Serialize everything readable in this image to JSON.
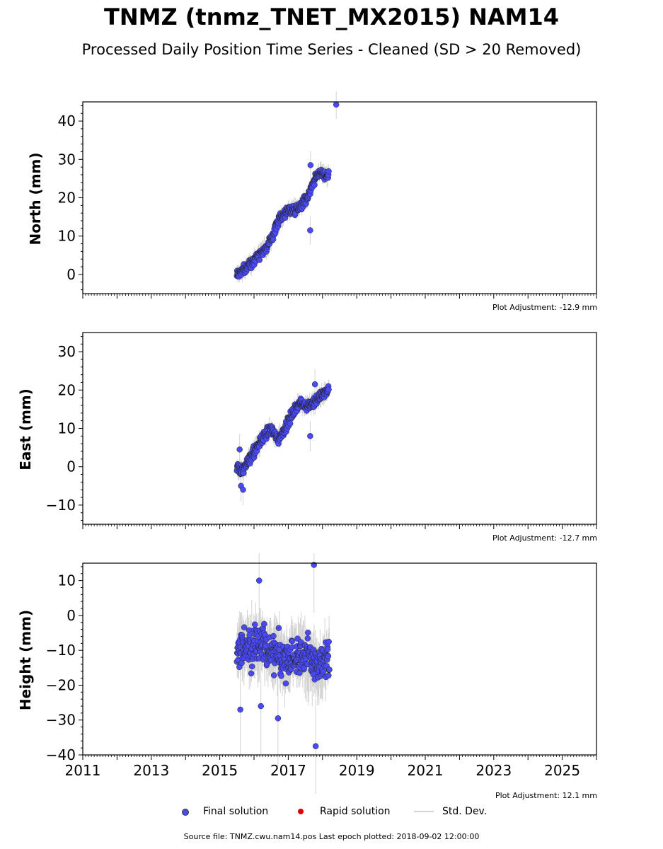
{
  "header": {
    "title": "TNMZ (tnmz_TNET_MX2015) NAM14",
    "subtitle": "Processed Daily Position Time Series - Cleaned (SD > 20 Removed)"
  },
  "legend": {
    "final": "Final solution",
    "rapid": "Rapid solution",
    "std": "Std. Dev."
  },
  "footer": "Source file: TNMZ.cwu.nam14.pos  Last epoch plotted: 2018-09-02 12:00:00",
  "colors": {
    "final": "#4a4af5",
    "rapid": "#e00000",
    "std": "#d3d3d3"
  },
  "chart_data": [
    {
      "type": "scatter",
      "ylabel": "North (mm)",
      "adjustment": "Plot Adjustment: -12.9 mm",
      "xlim": [
        2011,
        2026
      ],
      "ylim": [
        -5,
        45
      ],
      "yticks": [
        0,
        10,
        20,
        30,
        40
      ],
      "xticks": [],
      "grid": false,
      "series": [
        {
          "name": "Final solution",
          "trend": [
            [
              2015.5,
              0
            ],
            [
              2015.75,
              1.5
            ],
            [
              2015.95,
              3.5
            ],
            [
              2016.15,
              5.5
            ],
            [
              2016.35,
              6.8
            ],
            [
              2016.5,
              9
            ],
            [
              2016.7,
              14
            ],
            [
              2016.95,
              16.5
            ],
            [
              2017.3,
              17.5
            ],
            [
              2017.55,
              20
            ],
            [
              2017.75,
              24.5
            ],
            [
              2017.95,
              27
            ],
            [
              2018.1,
              25.5
            ],
            [
              2018.18,
              26
            ]
          ],
          "noise": 1.2,
          "sd": 1.5,
          "outliers": [
            [
              2017.64,
              11.5
            ],
            [
              2017.65,
              28.5
            ],
            [
              2018.4,
              44.3
            ]
          ]
        }
      ]
    },
    {
      "type": "scatter",
      "ylabel": "East (mm)",
      "adjustment": "Plot Adjustment: -12.7 mm",
      "xlim": [
        2011,
        2026
      ],
      "ylim": [
        -15,
        35
      ],
      "yticks": [
        -10,
        0,
        10,
        20,
        30
      ],
      "xticks": [],
      "grid": false,
      "series": [
        {
          "name": "Final solution",
          "trend": [
            [
              2015.5,
              -0.5
            ],
            [
              2015.7,
              -1
            ],
            [
              2015.8,
              1
            ],
            [
              2016.0,
              4
            ],
            [
              2016.3,
              8
            ],
            [
              2016.5,
              10
            ],
            [
              2016.7,
              7
            ],
            [
              2016.9,
              10
            ],
            [
              2017.1,
              13.5
            ],
            [
              2017.3,
              16.5
            ],
            [
              2017.55,
              16
            ],
            [
              2017.8,
              17
            ],
            [
              2018.0,
              19
            ],
            [
              2018.18,
              20
            ]
          ],
          "noise": 1.3,
          "sd": 1.6,
          "outliers": [
            [
              2015.58,
              4.5
            ],
            [
              2015.62,
              -5
            ],
            [
              2015.68,
              -6
            ],
            [
              2017.64,
              8
            ],
            [
              2017.78,
              21.5
            ]
          ]
        }
      ]
    },
    {
      "type": "scatter",
      "ylabel": "Height (mm)",
      "adjustment": "Plot Adjustment: 12.1 mm",
      "xlim": [
        2011,
        2026
      ],
      "ylim": [
        -40,
        15
      ],
      "yticks": [
        -40,
        -30,
        -20,
        -10,
        0,
        10
      ],
      "xticks": [
        2011,
        2013,
        2015,
        2017,
        2019,
        2021,
        2023,
        2025
      ],
      "grid": false,
      "series": [
        {
          "name": "Final solution",
          "trend": [
            [
              2015.5,
              -10
            ],
            [
              2015.8,
              -8
            ],
            [
              2016.0,
              -9
            ],
            [
              2016.3,
              -8
            ],
            [
              2016.6,
              -11
            ],
            [
              2016.9,
              -13
            ],
            [
              2017.2,
              -11
            ],
            [
              2017.5,
              -11
            ],
            [
              2017.8,
              -14
            ],
            [
              2018.0,
              -15
            ],
            [
              2018.2,
              -12
            ]
          ],
          "noise": 5.5,
          "sd": 5.5,
          "outliers": [
            [
              2015.6,
              -27
            ],
            [
              2016.15,
              10
            ],
            [
              2016.2,
              -26
            ],
            [
              2016.7,
              -29.5
            ],
            [
              2017.75,
              14.5
            ],
            [
              2017.8,
              -37.5
            ]
          ]
        }
      ]
    }
  ]
}
